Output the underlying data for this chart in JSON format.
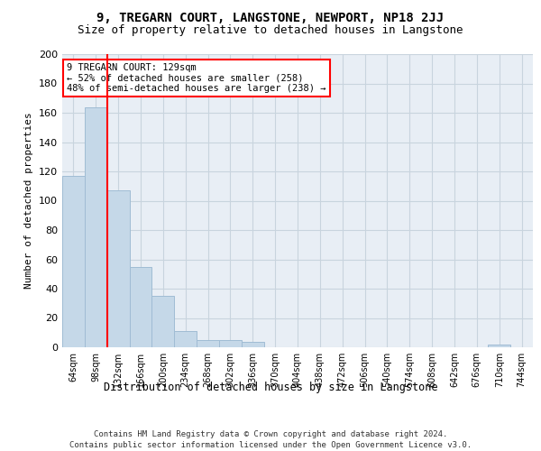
{
  "title": "9, TREGARN COURT, LANGSTONE, NEWPORT, NP18 2JJ",
  "subtitle": "Size of property relative to detached houses in Langstone",
  "xlabel": "Distribution of detached houses by size in Langstone",
  "ylabel": "Number of detached properties",
  "bar_values": [
    117,
    164,
    107,
    55,
    35,
    11,
    5,
    5,
    4,
    0,
    0,
    0,
    0,
    0,
    0,
    0,
    0,
    0,
    0,
    2,
    0
  ],
  "x_tick_labels": [
    "64sqm",
    "98sqm",
    "132sqm",
    "166sqm",
    "200sqm",
    "234sqm",
    "268sqm",
    "302sqm",
    "336sqm",
    "370sqm",
    "404sqm",
    "438sqm",
    "472sqm",
    "506sqm",
    "540sqm",
    "574sqm",
    "608sqm",
    "642sqm",
    "676sqm",
    "710sqm",
    "744sqm"
  ],
  "bar_color": "#c5d8e8",
  "bar_edge_color": "#a0bcd4",
  "red_line_x": 1.5,
  "ylim": [
    0,
    200
  ],
  "yticks": [
    0,
    20,
    40,
    60,
    80,
    100,
    120,
    140,
    160,
    180,
    200
  ],
  "annotation_text": "9 TREGARN COURT: 129sqm\n← 52% of detached houses are smaller (258)\n48% of semi-detached houses are larger (238) →",
  "footer1": "Contains HM Land Registry data © Crown copyright and database right 2024.",
  "footer2": "Contains public sector information licensed under the Open Government Licence v3.0.",
  "background_color": "#e8eef5",
  "grid_color": "#c8d4de"
}
